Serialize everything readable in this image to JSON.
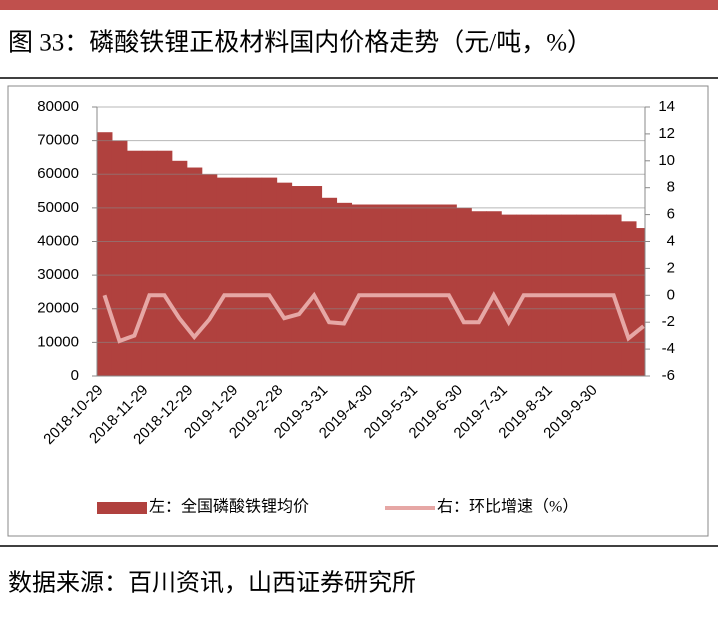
{
  "header": {
    "title": "图 33：磷酸铁锂正极材料国内价格走势（元/吨，%）"
  },
  "chart_data": {
    "type": "area",
    "categories": [
      "2018-10-29",
      null,
      null,
      "2018-11-29",
      null,
      null,
      "2018-12-29",
      null,
      null,
      "2019-1-29",
      null,
      null,
      "2019-2-28",
      null,
      null,
      "2019-3-31",
      null,
      null,
      "2019-4-30",
      null,
      null,
      "2019-5-31",
      null,
      null,
      "2019-6-30",
      null,
      null,
      "2019-7-31",
      null,
      null,
      "2019-8-31",
      null,
      null,
      "2019-9-30",
      null,
      null,
      null
    ],
    "series": [
      {
        "name": "左：全国磷酸铁锂均价",
        "color": "#b0413e",
        "values": [
          72500,
          70000,
          67000,
          67000,
          67000,
          64000,
          62000,
          60000,
          59000,
          59000,
          59000,
          59000,
          57500,
          56500,
          56500,
          53000,
          51500,
          51000,
          51000,
          51000,
          51000,
          51000,
          51000,
          51000,
          50000,
          49000,
          49000,
          48000,
          48000,
          48000,
          48000,
          48000,
          48000,
          48000,
          48000,
          46000,
          44000
        ]
      },
      {
        "name": "右：环比增速（%）",
        "color": "#e6a7a5",
        "axis": "y2",
        "values": [
          0,
          -3.4,
          -3,
          0,
          0,
          -1.7,
          -3.1,
          -1.8,
          0,
          0,
          0,
          0,
          -1.7,
          -1.4,
          0,
          -2,
          -2.1,
          0,
          0,
          0,
          0,
          0,
          0,
          0,
          -2,
          -2,
          0,
          -2,
          0,
          0,
          0,
          0,
          0,
          0,
          0,
          -3.2,
          -2.3
        ]
      }
    ],
    "ylim": [
      0,
      80000
    ],
    "yticks": [
      0,
      10000,
      20000,
      30000,
      40000,
      50000,
      60000,
      70000,
      80000
    ],
    "y2lim": [
      -6,
      14
    ],
    "y2ticks": [
      -6,
      -4,
      -2,
      0,
      2,
      4,
      6,
      8,
      10,
      12,
      14
    ],
    "grid": true
  },
  "footer": {
    "source": "数据来源：百川资讯，山西证券研究所"
  }
}
